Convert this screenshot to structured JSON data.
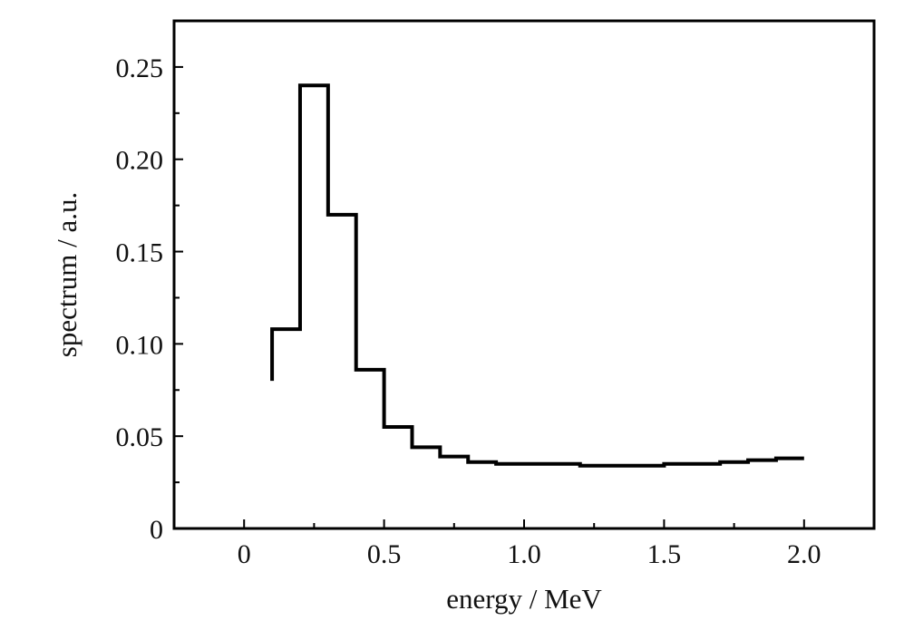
{
  "chart_data": {
    "type": "line",
    "style": "step",
    "title": "",
    "xlabel": "energy / MeV",
    "ylabel": "spectrum / a.u.",
    "xlim": [
      -0.25,
      2.25
    ],
    "ylim": [
      0,
      0.275
    ],
    "x_ticks": [
      0,
      0.5,
      1.0,
      1.5,
      2.0
    ],
    "x_tick_labels": [
      "0",
      "0.5",
      "1.0",
      "1.5",
      "2.0"
    ],
    "y_ticks": [
      0,
      0.05,
      0.1,
      0.15,
      0.2,
      0.25
    ],
    "y_tick_labels": [
      "0",
      "0.05",
      "0.10",
      "0.15",
      "0.20",
      "0.25"
    ],
    "grid": false,
    "legend": "none",
    "line_color": "#000000",
    "series": [
      {
        "start": [
          0.1,
          0.08
        ],
        "bin_edges": [
          0.1,
          0.2,
          0.3,
          0.4,
          0.5,
          0.6,
          0.7,
          0.8,
          0.9,
          1.0,
          1.1,
          1.2,
          1.3,
          1.4,
          1.5,
          1.6,
          1.7,
          1.8,
          1.9,
          2.0
        ],
        "values": [
          0.108,
          0.24,
          0.17,
          0.086,
          0.055,
          0.044,
          0.039,
          0.036,
          0.035,
          0.035,
          0.035,
          0.034,
          0.034,
          0.034,
          0.035,
          0.035,
          0.036,
          0.037,
          0.038
        ]
      }
    ]
  }
}
